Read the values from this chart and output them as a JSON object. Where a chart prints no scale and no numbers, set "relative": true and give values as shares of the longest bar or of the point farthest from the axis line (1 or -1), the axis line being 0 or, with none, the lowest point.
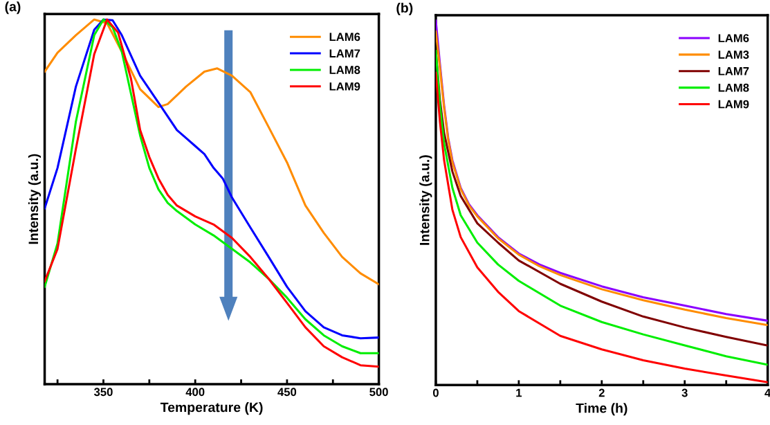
{
  "chart_data": [
    {
      "type": "line",
      "relative": true,
      "annotations": [
        "(a)"
      ],
      "xlabel": "Temperature (K)",
      "ylabel": "Intensity (a.u.)",
      "xlim": [
        318,
        500
      ],
      "xticks": [
        {
          "value": 325,
          "label": null
        },
        350,
        {
          "value": 375,
          "label": null
        },
        400,
        {
          "value": 425,
          "label": null
        },
        450,
        {
          "value": 475,
          "label": null
        },
        500
      ],
      "legend": "top right",
      "grid": false,
      "series": [
        {
          "name": "LAM6",
          "color": "#ff8c00",
          "x": [
            318,
            325,
            335,
            345,
            352,
            360,
            370,
            380,
            385,
            395,
            405,
            412,
            420,
            430,
            440,
            450,
            460,
            470,
            480,
            490,
            500
          ],
          "values": [
            0.857,
            0.909,
            0.957,
            1.0,
            0.99,
            0.912,
            0.809,
            0.76,
            0.768,
            0.816,
            0.857,
            0.866,
            0.846,
            0.801,
            0.705,
            0.608,
            0.49,
            0.415,
            0.349,
            0.304,
            0.274
          ]
        },
        {
          "name": "LAM7",
          "color": "#0000ff",
          "x": [
            318,
            325,
            335,
            345,
            350,
            355,
            360,
            370,
            380,
            390,
            395,
            400,
            405,
            410,
            415,
            420,
            430,
            440,
            450,
            460,
            470,
            480,
            490,
            500
          ],
          "values": [
            0.482,
            0.593,
            0.816,
            0.972,
            1.0,
            0.998,
            0.957,
            0.846,
            0.772,
            0.697,
            0.675,
            0.653,
            0.631,
            0.593,
            0.564,
            0.512,
            0.43,
            0.349,
            0.267,
            0.2,
            0.156,
            0.134,
            0.126,
            0.128
          ]
        },
        {
          "name": "LAM8",
          "color": "#00ee00",
          "x": [
            318,
            325,
            335,
            345,
            350,
            355,
            360,
            370,
            375,
            380,
            385,
            390,
            400,
            410,
            420,
            430,
            440,
            450,
            460,
            470,
            480,
            490,
            500
          ],
          "values": [
            0.267,
            0.386,
            0.72,
            0.957,
            1.0,
            0.979,
            0.912,
            0.682,
            0.593,
            0.534,
            0.497,
            0.475,
            0.438,
            0.408,
            0.371,
            0.334,
            0.289,
            0.237,
            0.178,
            0.134,
            0.104,
            0.085,
            0.085
          ]
        },
        {
          "name": "LAM9",
          "color": "#ff0000",
          "x": [
            318,
            325,
            335,
            345,
            352,
            358,
            365,
            370,
            375,
            380,
            385,
            390,
            400,
            410,
            420,
            430,
            440,
            450,
            460,
            470,
            480,
            490,
            500
          ],
          "values": [
            0.282,
            0.371,
            0.645,
            0.905,
            1.0,
            0.964,
            0.838,
            0.697,
            0.623,
            0.564,
            0.519,
            0.49,
            0.46,
            0.438,
            0.401,
            0.349,
            0.289,
            0.223,
            0.156,
            0.104,
            0.074,
            0.052,
            0.048
          ]
        }
      ]
    },
    {
      "type": "line",
      "relative": true,
      "annotations": [
        "(b)"
      ],
      "xlabel": "Time (h)",
      "ylabel": "Intensity (a.u.)",
      "xlim": [
        0,
        4
      ],
      "xticks": [
        0,
        {
          "value": 0.5,
          "label": null
        },
        1,
        {
          "value": 1.5,
          "label": null
        },
        2,
        {
          "value": 2.5,
          "label": null
        },
        3,
        {
          "value": 3.5,
          "label": null
        },
        4
      ],
      "legend": "top right",
      "grid": false,
      "series": [
        {
          "name": "LAM6",
          "color": "#8b00ff",
          "x": [
            0,
            0.05,
            0.1,
            0.15,
            0.2,
            0.3,
            0.4,
            0.5,
            0.75,
            1,
            1.25,
            1.5,
            2,
            2.5,
            3,
            3.5,
            3.99
          ],
          "values": [
            1.0,
            0.88,
            0.767,
            0.677,
            0.617,
            0.541,
            0.496,
            0.466,
            0.406,
            0.361,
            0.331,
            0.308,
            0.271,
            0.241,
            0.218,
            0.195,
            0.177
          ]
        },
        {
          "name": "LAM3",
          "color": "#ff8c00",
          "x": [
            0,
            0.05,
            0.1,
            0.15,
            0.2,
            0.3,
            0.4,
            0.5,
            0.75,
            1,
            1.25,
            1.5,
            2,
            2.5,
            3,
            3.5,
            3.99
          ],
          "values": [
            0.97,
            0.87,
            0.76,
            0.672,
            0.612,
            0.538,
            0.493,
            0.463,
            0.403,
            0.358,
            0.326,
            0.302,
            0.263,
            0.233,
            0.207,
            0.184,
            0.165
          ]
        },
        {
          "name": "LAM7",
          "color": "#800000",
          "x": [
            0,
            0.05,
            0.1,
            0.2,
            0.3,
            0.5,
            0.75,
            1,
            1.5,
            2,
            2.5,
            3,
            3.5,
            3.99
          ],
          "values": [
            0.917,
            0.782,
            0.692,
            0.586,
            0.519,
            0.444,
            0.391,
            0.342,
            0.278,
            0.229,
            0.188,
            0.158,
            0.132,
            0.109
          ]
        },
        {
          "name": "LAM8",
          "color": "#00ee00",
          "x": [
            0,
            0.05,
            0.1,
            0.2,
            0.3,
            0.5,
            0.75,
            1,
            1.5,
            2,
            2.5,
            3,
            3.5,
            3.99
          ],
          "values": [
            0.917,
            0.767,
            0.662,
            0.541,
            0.466,
            0.391,
            0.331,
            0.286,
            0.218,
            0.173,
            0.139,
            0.109,
            0.079,
            0.056
          ]
        },
        {
          "name": "LAM9",
          "color": "#ff0000",
          "x": [
            0,
            0.05,
            0.1,
            0.2,
            0.3,
            0.5,
            0.75,
            1,
            1.5,
            2,
            2.5,
            3,
            3.5,
            3.99
          ],
          "values": [
            0.857,
            0.722,
            0.617,
            0.481,
            0.406,
            0.323,
            0.256,
            0.203,
            0.135,
            0.098,
            0.068,
            0.045,
            0.026,
            0.008
          ]
        }
      ]
    }
  ]
}
